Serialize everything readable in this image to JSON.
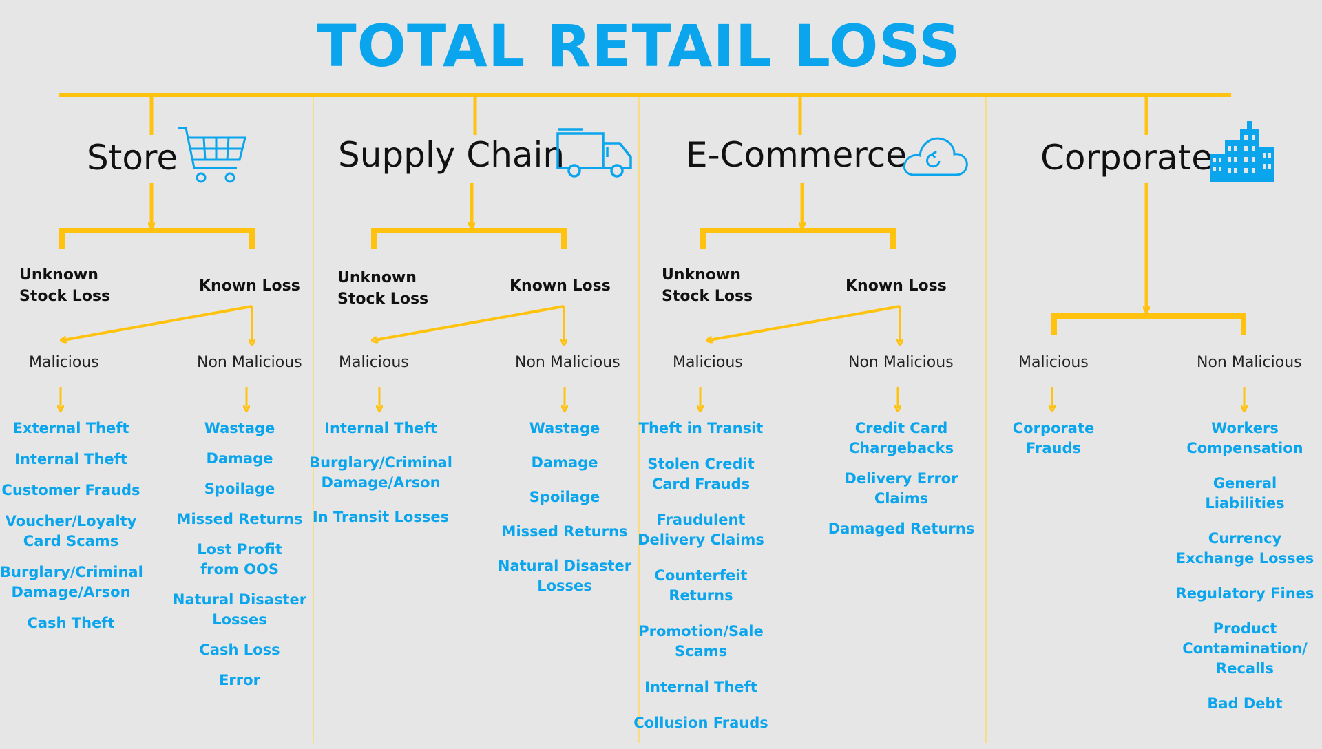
{
  "title": "TOTAL RETAIL LOSS",
  "colors": {
    "title": "#0aa5ec",
    "items": "#0aa5ec",
    "connector": "#ffc20e",
    "divider": "#ffd966",
    "text": "#111111"
  },
  "sections": [
    {
      "heading": "Store",
      "icon": "shopping-cart-icon",
      "unknown_label": "Unknown\nStock Loss",
      "known_label": "Known  Loss",
      "malicious_label": "Malicious",
      "non_malicious_label": "Non Malicious",
      "malicious_items": [
        "External Theft",
        "Internal Theft",
        "Customer Frauds",
        "Voucher/Loyalty\nCard Scams",
        "Burglary/Criminal\nDamage/Arson",
        "Cash Theft"
      ],
      "non_malicious_items": [
        "Wastage",
        "Damage",
        "Spoilage",
        "Missed Returns",
        "Lost Profit\nfrom OOS",
        "Natural Disaster\nLosses",
        "Cash Loss",
        "Error"
      ]
    },
    {
      "heading": "Supply Chain",
      "icon": "delivery-truck-icon",
      "unknown_label": "Unknown\nStock Loss",
      "known_label": "Known  Loss",
      "malicious_label": "Malicious",
      "non_malicious_label": "Non Malicious",
      "malicious_items": [
        "Internal Theft",
        "Burglary/Criminal\nDamage/Arson",
        "In Transit Losses"
      ],
      "non_malicious_items": [
        "Wastage",
        "Damage",
        "Spoilage",
        "Missed Returns",
        "Natural Disaster\nLosses"
      ]
    },
    {
      "heading": "E-Commerce",
      "icon": "cloud-icon",
      "unknown_label": "Unknown\nStock Loss",
      "known_label": "Known  Loss",
      "malicious_label": "Malicious",
      "non_malicious_label": "Non Malicious",
      "malicious_items": [
        "Theft in Transit",
        "Stolen Credit\nCard Frauds",
        "Fraudulent\nDelivery Claims",
        "Counterfeit\nReturns",
        "Promotion/Sale\nScams",
        "Internal Theft",
        "Collusion Frauds"
      ],
      "non_malicious_items": [
        "Credit Card\nChargebacks",
        "Delivery Error\nClaims",
        "Damaged Returns"
      ]
    },
    {
      "heading": "Corporate",
      "icon": "office-building-icon",
      "malicious_label": "Malicious",
      "non_malicious_label": "Non Malicious",
      "malicious_items": [
        "Corporate Frauds"
      ],
      "non_malicious_items": [
        "Workers\nCompensation",
        "General\nLiabilities",
        "Currency\nExchange Losses",
        "Regulatory Fines",
        "Product\nContamination/\nRecalls",
        "Bad Debt"
      ]
    }
  ]
}
